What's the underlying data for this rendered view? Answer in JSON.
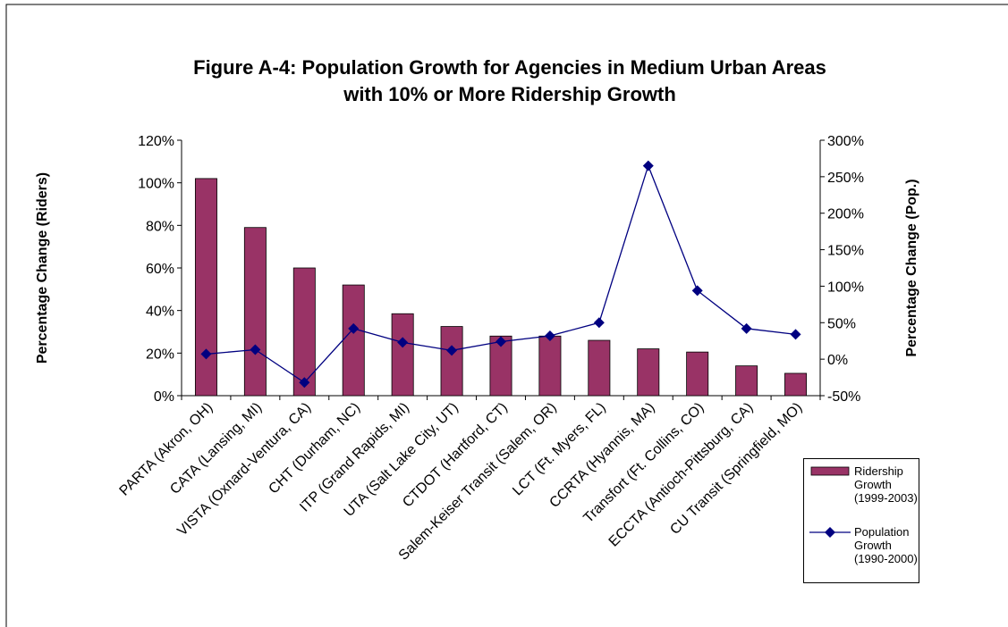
{
  "chart_data": {
    "type": "bar+line",
    "title": [
      "Figure A-4: Population Growth for Agencies in Medium Urban Areas",
      "with 10% or More Ridership Growth"
    ],
    "y_label": "Percentage Change (Riders)",
    "y2_label": "Percentage Change (Pop.)",
    "categories": [
      "PARTA (Akron, OH)",
      "CATA (Lansing, MI)",
      "VISTA (Oxnard-Ventura, CA)",
      "CHT (Durham, NC)",
      "ITP (Grand Rapids, MI)",
      "UTA (Salt Lake City, UT)",
      "CTDOT (Hartford, CT)",
      "Salem-Keiser Transit (Salem, OR)",
      "LCT (Ft. Myers, FL)",
      "CCRTA (Hyannis, MA)",
      "Transfort (Ft. Collins, CO)",
      "ECCTA (Antioch-Pittsburg, CA)",
      "CU Transit (Springfield, MO)"
    ],
    "series": [
      {
        "name": "Ridership Growth (1999-2003)",
        "type": "bar",
        "color": "#993366",
        "values": [
          102,
          79,
          60,
          52,
          38.5,
          32.5,
          28,
          28,
          26,
          22,
          20.5,
          14,
          10.5
        ]
      },
      {
        "name": "Population Growth (1990-2000)",
        "type": "line",
        "axis": "y2",
        "color": "#000080",
        "values": [
          7,
          13,
          -32,
          42,
          23,
          12,
          24,
          32,
          50,
          265,
          94,
          42,
          34
        ]
      }
    ],
    "ylim": [
      0,
      120
    ],
    "yticks": [
      {
        "value": 0,
        "label": "0%"
      },
      {
        "value": 20,
        "label": "20%"
      },
      {
        "value": 40,
        "label": "40%"
      },
      {
        "value": 60,
        "label": "60%"
      },
      {
        "value": 80,
        "label": "80%"
      },
      {
        "value": 100,
        "label": "100%"
      },
      {
        "value": 120,
        "label": "120%"
      }
    ],
    "y2lim": [
      -50,
      300
    ],
    "y2ticks": [
      {
        "value": -50,
        "label": "-50%"
      },
      {
        "value": 0,
        "label": "0%"
      },
      {
        "value": 50,
        "label": "50%"
      },
      {
        "value": 100,
        "label": "100%"
      },
      {
        "value": 150,
        "label": "150%"
      },
      {
        "value": 200,
        "label": "200%"
      },
      {
        "value": 250,
        "label": "250%"
      },
      {
        "value": 300,
        "label": "300%"
      }
    ],
    "grid": false,
    "legend": "lower right"
  }
}
